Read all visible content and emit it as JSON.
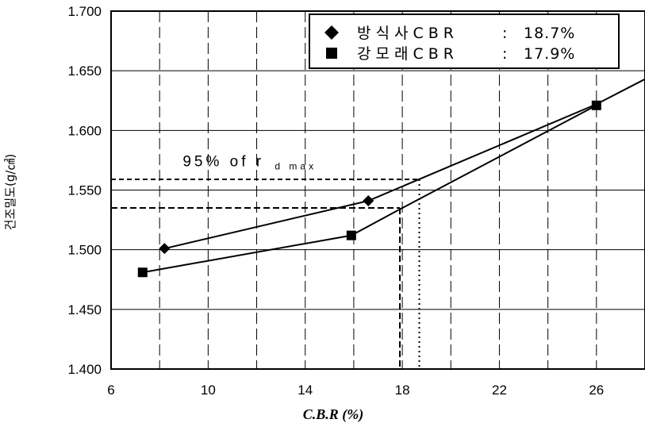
{
  "chart_data": {
    "type": "line",
    "title": "",
    "xlabel": "C.B.R (%)",
    "ylabel": "건조밀도(g/㎤)",
    "xlim": [
      6,
      28
    ],
    "ylim": [
      1.4,
      1.7
    ],
    "x_ticks": [
      6,
      10,
      14,
      18,
      22,
      26
    ],
    "x_tick_labels": [
      "6",
      "10",
      "14",
      "18",
      "22",
      "26"
    ],
    "y_ticks": [
      1.4,
      1.45,
      1.5,
      1.55,
      1.6,
      1.65,
      1.7
    ],
    "y_tick_labels": [
      "1.400",
      "1.450",
      "1.500",
      "1.550",
      "1.600",
      "1.650",
      "1.700"
    ],
    "grid": true,
    "legend_position": "top-right",
    "series": [
      {
        "name": "방식사CBR : 18.7%",
        "label_name": "방식사CBR",
        "label_value": "18.7%",
        "marker": "diamond",
        "color": "#000000",
        "points": [
          [
            8.2,
            1.501
          ],
          [
            16.6,
            1.541
          ],
          [
            26.0,
            1.622
          ],
          [
            28.0,
            1.643
          ]
        ]
      },
      {
        "name": "강모래CBR : 17.9%",
        "label_name": "강모래CBR",
        "label_value": "17.9%",
        "marker": "square",
        "color": "#000000",
        "points": [
          [
            7.3,
            1.481
          ],
          [
            15.9,
            1.512
          ],
          [
            18.0,
            1.535
          ],
          [
            26.0,
            1.621
          ]
        ]
      }
    ],
    "marker_points": [
      {
        "series": 0,
        "points": [
          [
            8.2,
            1.501
          ],
          [
            16.6,
            1.541
          ]
        ]
      },
      {
        "series": 1,
        "points": [
          [
            7.3,
            1.481
          ],
          [
            15.9,
            1.512
          ],
          [
            26.0,
            1.621
          ]
        ]
      }
    ],
    "reference_lines": [
      {
        "style": "dashed",
        "y": 1.559,
        "x_from": 6,
        "x_to": 18.7,
        "drop_style": "dotted",
        "x_drop": 18.7
      },
      {
        "style": "dashed",
        "y": 1.535,
        "x_from": 6,
        "x_to": 17.9,
        "drop_style": "dashed",
        "x_drop": 17.9
      }
    ],
    "annotation": {
      "main": "95%  of  r",
      "sub": "d max",
      "x": 10.0,
      "y": 1.574
    }
  }
}
